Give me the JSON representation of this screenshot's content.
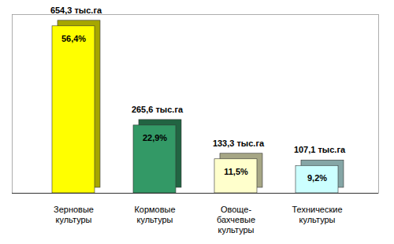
{
  "chart_data": {
    "type": "bar",
    "categories": [
      "Зерновые культуры",
      "Кормовые культуры",
      "Овоще-бахчевые культуры",
      "Технические культуры"
    ],
    "values": [
      654.3,
      265.6,
      133.3,
      107.1
    ],
    "value_labels": [
      "654,3 тыс.га",
      "265,6 тыс.га",
      "133,3 тыс.га",
      "107,1 тыс.га"
    ],
    "shares": [
      56.4,
      22.9,
      11.5,
      9.2
    ],
    "share_labels": [
      "56,4%",
      "22,9%",
      "11,5%",
      "9,2%"
    ],
    "colors": [
      "#ffff00",
      "#339966",
      "#ffffcc",
      "#ccffff"
    ],
    "ylim": [
      0,
      700
    ],
    "data_labels": true,
    "tick_labels": "x"
  }
}
